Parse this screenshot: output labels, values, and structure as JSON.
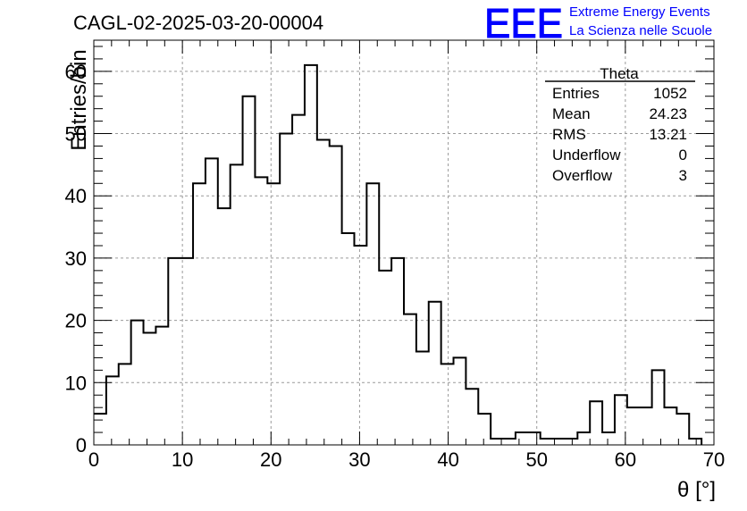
{
  "header": {
    "run_title": "CAGL-02-2025-03-20-00004",
    "logo_text": "EEE",
    "org_line1": "Extreme Energy Events",
    "org_line2": "La Scienza nelle Scuole",
    "brand_color": "#0000ff"
  },
  "stats_box": {
    "title": "Theta",
    "rows": [
      {
        "label": "Entries",
        "value": "1052"
      },
      {
        "label": "Mean",
        "value": "24.23"
      },
      {
        "label": "RMS",
        "value": "13.21"
      },
      {
        "label": "Underflow",
        "value": "0"
      },
      {
        "label": "Overflow",
        "value": "3"
      }
    ]
  },
  "chart_data": {
    "type": "bar",
    "style": "step-histogram",
    "xlabel": "θ [°]",
    "ylabel": "Entries/bin",
    "xlim": [
      0,
      70
    ],
    "ylim": [
      0,
      65
    ],
    "bin_width": 1.4,
    "x_ticks": [
      "0",
      "10",
      "20",
      "30",
      "40",
      "50",
      "60",
      "70"
    ],
    "y_ticks": [
      "0",
      "10",
      "20",
      "30",
      "40",
      "50",
      "60"
    ],
    "grid": true,
    "values": [
      5,
      11,
      13,
      20,
      18,
      19,
      30,
      30,
      42,
      46,
      38,
      45,
      56,
      43,
      42,
      50,
      53,
      61,
      49,
      48,
      34,
      32,
      42,
      28,
      30,
      21,
      15,
      23,
      13,
      14,
      9,
      5,
      1,
      1,
      2,
      2,
      1,
      1,
      1,
      2,
      7,
      2,
      8,
      6,
      6,
      12,
      6,
      5,
      1
    ]
  }
}
